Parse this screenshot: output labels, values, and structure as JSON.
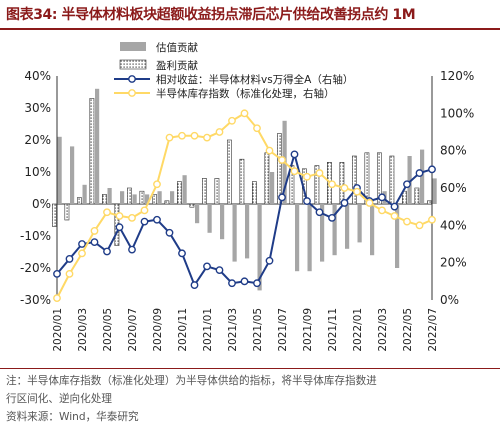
{
  "figure": {
    "title": "图表34:  半导体材料板块超额收益拐点滞后芯片供给改善拐点约 1M",
    "note_line1": "注：半导体库存指数（标准化处理）为半导体供给的指标，将半导体库存指数进",
    "note_line2": "行区间化、逆向化处理",
    "source": "资料来源：Wind，华泰研究"
  },
  "chart_data": {
    "type": "bar",
    "categories": [
      "2020/01",
      "2020/02",
      "2020/03",
      "2020/04",
      "2020/05",
      "2020/06",
      "2020/07",
      "2020/08",
      "2020/09",
      "2020/10",
      "2020/11",
      "2020/12",
      "2021/01",
      "2021/02",
      "2021/03",
      "2021/04",
      "2021/05",
      "2021/06",
      "2021/07",
      "2021/08",
      "2021/09",
      "2021/10",
      "2021/11",
      "2021/12",
      "2022/01",
      "2022/02",
      "2022/03",
      "2022/04",
      "2022/05",
      "2022/06",
      "2022/07"
    ],
    "x_tick_labels": [
      "2020/01",
      "2020/03",
      "2020/05",
      "2020/07",
      "2020/09",
      "2020/11",
      "2021/01",
      "2021/03",
      "2021/05",
      "2021/07",
      "2021/09",
      "2021/11",
      "2022/01",
      "2022/03",
      "2022/05",
      "2022/07"
    ],
    "left_axis": {
      "min": -30,
      "max": 40,
      "step": 10,
      "unit": "%"
    },
    "right_axis": {
      "min": 0,
      "max": 120,
      "step": 20,
      "unit": "%"
    },
    "series": [
      {
        "name": "估值贡献",
        "kind": "bar",
        "axis": "left",
        "color": "#a6a6a6",
        "values": [
          21,
          18,
          6,
          36,
          5,
          4,
          3,
          3,
          4,
          4,
          9,
          -6,
          -9,
          -11,
          -18,
          -17,
          -27,
          10,
          26,
          -21,
          -21,
          -18,
          -16,
          -14,
          -12,
          -16,
          4,
          -20,
          15,
          17,
          8
        ]
      },
      {
        "name": "盈利贡献",
        "kind": "bar",
        "axis": "left",
        "color": "#ffffff",
        "values": [
          -7,
          -5,
          2,
          33,
          3,
          -13,
          5,
          4,
          3,
          1,
          7,
          -1,
          8,
          8,
          20,
          14,
          7,
          16,
          22,
          12,
          11,
          12,
          13,
          13,
          15,
          16,
          16,
          15,
          4,
          5,
          1
        ]
      },
      {
        "name": "相对收益：半导体材料vs万得全A（右轴）",
        "kind": "line",
        "axis": "right",
        "color": "#1f3c88",
        "values": [
          14,
          22,
          30,
          31,
          26,
          39,
          27,
          42,
          43,
          36,
          25,
          8,
          18,
          16,
          9,
          10,
          9,
          21,
          55,
          78,
          53,
          47,
          44,
          52,
          60,
          53,
          55,
          50,
          62,
          68,
          70
        ]
      },
      {
        "name": "半导体库存指数（标准化处理，右轴）",
        "kind": "line",
        "axis": "right",
        "color": "#ffd966",
        "values": [
          1,
          14,
          25,
          37,
          47,
          45,
          44,
          48,
          62,
          87,
          88,
          88,
          87,
          90,
          96,
          100,
          92,
          80,
          75,
          69,
          66,
          68,
          62,
          60,
          58,
          52,
          48,
          45,
          42,
          40,
          43
        ]
      }
    ],
    "legend_position": "top-center",
    "grid": false
  }
}
